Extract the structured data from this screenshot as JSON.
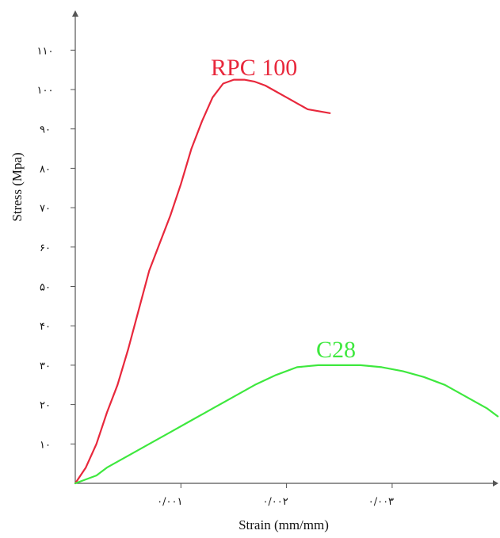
{
  "chart_data": {
    "type": "line",
    "xlabel": "Strain (mm/mm)",
    "ylabel": "Stress (Mpa)",
    "xlim": [
      0,
      0.004
    ],
    "ylim": [
      0,
      110
    ],
    "x_ticks": [
      {
        "value": 0.001,
        "label": "۰/۰۰۱"
      },
      {
        "value": 0.002,
        "label": "۰/۰۰۲"
      },
      {
        "value": 0.003,
        "label": "۰/۰۰۳"
      }
    ],
    "y_ticks": [
      {
        "value": 10,
        "label": "۱۰"
      },
      {
        "value": 20,
        "label": "۲۰"
      },
      {
        "value": 30,
        "label": "۳۰"
      },
      {
        "value": 40,
        "label": "۴۰"
      },
      {
        "value": 50,
        "label": "۵۰"
      },
      {
        "value": 60,
        "label": "۶۰"
      },
      {
        "value": 70,
        "label": "۷۰"
      },
      {
        "value": 80,
        "label": "۸۰"
      },
      {
        "value": 90,
        "label": "۹۰"
      },
      {
        "value": 100,
        "label": "۱۰۰"
      },
      {
        "value": 110,
        "label": "۱۱۰"
      }
    ],
    "grid": false,
    "legend": "none",
    "series": [
      {
        "name": "RPC 100",
        "color": "#e8283c",
        "points": [
          [
            0,
            0
          ],
          [
            0.0001,
            4
          ],
          [
            0.0002,
            10
          ],
          [
            0.0003,
            18
          ],
          [
            0.0004,
            25
          ],
          [
            0.0005,
            34
          ],
          [
            0.0006,
            44
          ],
          [
            0.0007,
            54
          ],
          [
            0.0008,
            61
          ],
          [
            0.0009,
            68
          ],
          [
            0.001,
            76
          ],
          [
            0.0011,
            85
          ],
          [
            0.0012,
            92
          ],
          [
            0.0013,
            98
          ],
          [
            0.0014,
            101.5
          ],
          [
            0.0015,
            102.5
          ],
          [
            0.0016,
            102.5
          ],
          [
            0.0017,
            102
          ],
          [
            0.0018,
            101
          ],
          [
            0.0019,
            99.5
          ],
          [
            0.002,
            98
          ],
          [
            0.0021,
            96.5
          ],
          [
            0.0022,
            95
          ],
          [
            0.00241,
            94
          ]
        ]
      },
      {
        "name": "C28",
        "color": "#3ee83e",
        "points": [
          [
            0,
            0
          ],
          [
            0.0002,
            2
          ],
          [
            0.0003,
            4
          ],
          [
            0.0005,
            7
          ],
          [
            0.0007,
            10
          ],
          [
            0.0009,
            13
          ],
          [
            0.0011,
            16
          ],
          [
            0.0013,
            19
          ],
          [
            0.0015,
            22
          ],
          [
            0.0017,
            25
          ],
          [
            0.0019,
            27.5
          ],
          [
            0.0021,
            29.5
          ],
          [
            0.0023,
            30
          ],
          [
            0.0025,
            30
          ],
          [
            0.0027,
            30
          ],
          [
            0.0029,
            29.5
          ],
          [
            0.0031,
            28.5
          ],
          [
            0.0033,
            27
          ],
          [
            0.0035,
            25
          ],
          [
            0.0037,
            22
          ],
          [
            0.0039,
            19
          ],
          [
            0.004,
            17
          ]
        ]
      }
    ]
  }
}
